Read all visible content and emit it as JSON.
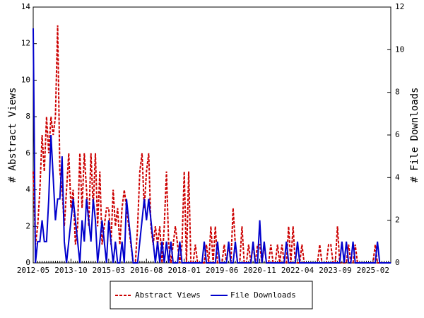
{
  "chart_data": {
    "type": "line",
    "ylabel": "# Abstract Views",
    "y2label": "# File Downloads",
    "ylim": [
      0,
      14
    ],
    "yticks": [
      0,
      2,
      4,
      6,
      8,
      10,
      12,
      14
    ],
    "y2lim": [
      0,
      12
    ],
    "y2ticks": [
      0,
      2,
      4,
      6,
      8,
      10,
      12
    ],
    "legend": "bottom",
    "categories": [
      "2012-05",
      null,
      null,
      null,
      null,
      null,
      null,
      null,
      null,
      null,
      null,
      null,
      null,
      null,
      null,
      null,
      null,
      "2013-10",
      null,
      null,
      null,
      null,
      null,
      null,
      null,
      null,
      null,
      null,
      null,
      null,
      null,
      null,
      null,
      null,
      "2015-03",
      null,
      null,
      null,
      null,
      null,
      null,
      null,
      null,
      null,
      null,
      null,
      null,
      null,
      null,
      null,
      null,
      "2016-08",
      null,
      null,
      null,
      null,
      null,
      null,
      null,
      null,
      null,
      null,
      null,
      null,
      null,
      null,
      null,
      null,
      "2018-01",
      null,
      null,
      null,
      null,
      null,
      null,
      null,
      null,
      null,
      null,
      null,
      null,
      null,
      null,
      null,
      null,
      "2019-06",
      null,
      null,
      null,
      null,
      null,
      null,
      null,
      null,
      null,
      null,
      null,
      null,
      null,
      null,
      null,
      null,
      "2020-11",
      null,
      null,
      null,
      null,
      null,
      null,
      null,
      null,
      null,
      null,
      null,
      null,
      null,
      null,
      null,
      null,
      "2022-04",
      null,
      null,
      null,
      null,
      null,
      null,
      null,
      null,
      null,
      null,
      null,
      null,
      null,
      null,
      null,
      null,
      "2023-09",
      null,
      null,
      null,
      null,
      null,
      null,
      null,
      null,
      null,
      null,
      null,
      null,
      null,
      null,
      null,
      null,
      "2025-02",
      null,
      null,
      null,
      null,
      null,
      null,
      null,
      null
    ],
    "series": [
      {
        "name": "Abstract Views",
        "color": "#cc0000",
        "dash": true,
        "values": [
          5,
          1,
          2,
          4,
          7,
          5,
          8,
          6,
          8,
          7,
          8,
          13,
          5,
          4,
          2,
          4,
          6,
          3,
          4,
          1,
          2,
          6,
          3,
          6,
          4,
          2,
          6,
          3,
          6,
          2,
          5,
          1,
          2,
          3,
          3,
          1,
          4,
          2,
          3,
          1,
          3,
          4,
          3,
          2,
          1,
          0,
          0,
          2,
          5,
          6,
          3,
          5,
          6,
          2,
          1,
          2,
          1,
          2,
          0,
          2,
          5,
          1,
          0,
          1,
          2,
          1,
          0,
          1,
          5,
          0,
          5,
          0,
          0,
          1,
          0,
          0,
          0,
          0,
          1,
          0,
          2,
          0,
          2,
          0,
          0,
          0,
          1,
          0,
          1,
          0,
          3,
          1,
          0,
          0,
          2,
          0,
          0,
          1,
          0,
          1,
          0,
          1,
          1,
          0,
          1,
          0,
          0,
          1,
          0,
          0,
          1,
          0,
          1,
          0,
          0,
          2,
          0,
          2,
          0,
          0,
          0,
          1,
          0,
          0,
          0,
          0,
          0,
          0,
          0,
          1,
          0,
          0,
          0,
          1,
          1,
          0,
          0,
          2,
          0,
          0,
          0,
          0,
          1,
          0,
          0,
          1,
          0,
          0,
          0,
          0,
          0,
          0,
          0,
          0,
          1,
          0,
          0,
          0,
          0,
          0,
          0,
          0
        ]
      },
      {
        "name": "File Downloads",
        "color": "#0000cc",
        "dash": false,
        "axis": "y2",
        "values": [
          11,
          0,
          1,
          1,
          2,
          1,
          1,
          3,
          6,
          4,
          2,
          3,
          3,
          5,
          1,
          0,
          1,
          2,
          3,
          2,
          1,
          0,
          2,
          1,
          3,
          2,
          1,
          3,
          2,
          0,
          1,
          2,
          1,
          0,
          2,
          1,
          0,
          1,
          0,
          0,
          1,
          0,
          3,
          2,
          1,
          0,
          0,
          0,
          1,
          2,
          3,
          2,
          3,
          2,
          1,
          0,
          1,
          0,
          1,
          0,
          1,
          0,
          1,
          0,
          0,
          0,
          1,
          0,
          0,
          0,
          0,
          0,
          0,
          0,
          0,
          0,
          0,
          1,
          0,
          0,
          0,
          0,
          0,
          1,
          0,
          0,
          0,
          0,
          1,
          0,
          0,
          1,
          0,
          0,
          0,
          0,
          0,
          0,
          0,
          1,
          0,
          0,
          2,
          0,
          1,
          0,
          0,
          0,
          0,
          0,
          0,
          0,
          0,
          0,
          1,
          0,
          0,
          0,
          0,
          1,
          0,
          0,
          0,
          0,
          0,
          0,
          0,
          0,
          0,
          0,
          0,
          0,
          0,
          0,
          0,
          0,
          0,
          0,
          0,
          1,
          0,
          1,
          0,
          0,
          1,
          0,
          0,
          0,
          0,
          0,
          0,
          0,
          0,
          0,
          0,
          1,
          0,
          0,
          0,
          0,
          0,
          0
        ]
      }
    ]
  }
}
